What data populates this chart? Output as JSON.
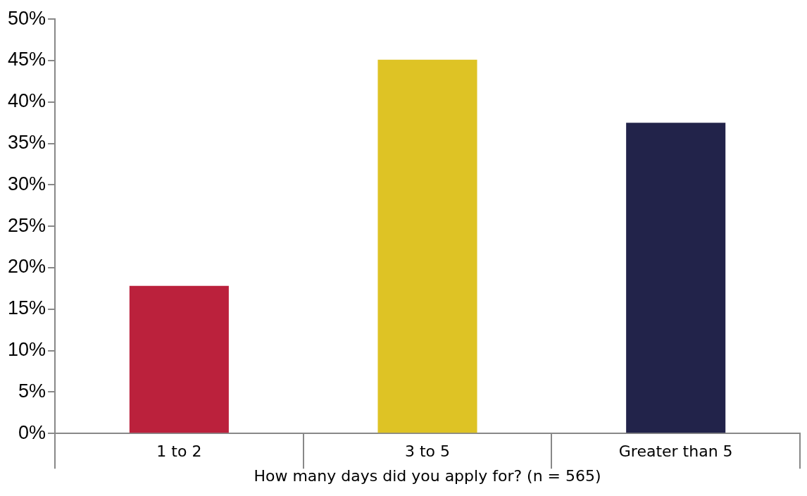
{
  "chart_data": {
    "type": "bar",
    "xlabel": "How many days did you apply for? (n = 565)",
    "categories": [
      "1 to 2",
      "3 to 5",
      "Greater than 5"
    ],
    "values": [
      17.8,
      45.1,
      37.5
    ],
    "colors": [
      "#bb213c",
      "#dec325",
      "#22234a"
    ],
    "ylim": [
      0,
      50
    ],
    "yticks": [
      {
        "value": 0,
        "label": "0%"
      },
      {
        "value": 5,
        "label": "5%"
      },
      {
        "value": 10,
        "label": "10%"
      },
      {
        "value": 15,
        "label": "15%"
      },
      {
        "value": 20,
        "label": "20%"
      },
      {
        "value": 25,
        "label": "25%"
      },
      {
        "value": 30,
        "label": "30%"
      },
      {
        "value": 35,
        "label": "35%"
      },
      {
        "value": 40,
        "label": "40%"
      },
      {
        "value": 45,
        "label": "45%"
      },
      {
        "value": 50,
        "label": "50%"
      }
    ],
    "grid": false,
    "legend": false
  }
}
